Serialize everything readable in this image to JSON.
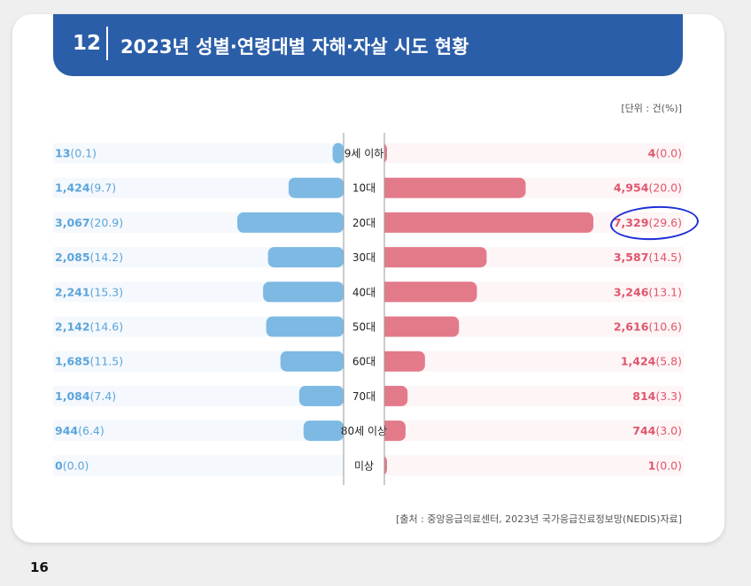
{
  "header": {
    "number": "12",
    "title": "2023년 성별·연령대별 자해·자살 시도 현황"
  },
  "unit_label": "[단위 : 건(%)]",
  "source_label": "[출처 : 중앙응급의료센터, 2023년 국가응급진료정보망(NEDIS)자료]",
  "page_number": "16",
  "colors": {
    "left_bar": "#7db9e3",
    "right_bar": "#e37a8a",
    "left_text": "#5aa5dc",
    "right_text": "#e0566c",
    "header_bg": "#2b5ea8",
    "annotation": "#1f2fd6"
  },
  "chart_data": {
    "type": "bar",
    "orientation": "horizontal-diverging",
    "categories": [
      "9세 이하",
      "10대",
      "20대",
      "30대",
      "40대",
      "50대",
      "60대",
      "70대",
      "80세 이상",
      "미상"
    ],
    "series": [
      {
        "values": [
          13,
          1424,
          3067,
          2085,
          2241,
          2142,
          1685,
          1084,
          944,
          0
        ],
        "count_labels": [
          "13",
          "1,424",
          "3,067",
          "2,085",
          "2,241",
          "2,142",
          "1,685",
          "1,084",
          "944",
          "0"
        ],
        "pct_labels": [
          "(0.1)",
          "(9.7)",
          "(20.9)",
          "(14.2)",
          "(15.3)",
          "(14.6)",
          "(11.5)",
          "(7.4)",
          "(6.4)",
          "(0.0)"
        ]
      },
      {
        "values": [
          4,
          4954,
          7329,
          3587,
          3246,
          2616,
          1424,
          814,
          744,
          1
        ],
        "count_labels": [
          "4",
          "4,954",
          "7,329",
          "3,587",
          "3,246",
          "2,616",
          "1,424",
          "814",
          "744",
          "1"
        ],
        "pct_labels": [
          "(0.0)",
          "(20.0)",
          "(29.6)",
          "(14.5)",
          "(13.1)",
          "(10.6)",
          "(5.8)",
          "(3.3)",
          "(3.0)",
          "(0.0)"
        ]
      }
    ],
    "highlighted": {
      "series": 1,
      "category": "20대"
    }
  }
}
